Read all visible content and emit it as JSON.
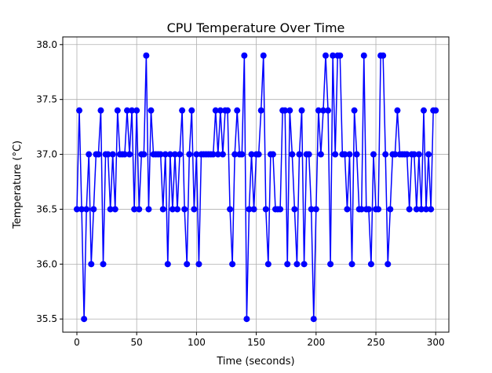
{
  "chart_data": {
    "type": "line",
    "title": "CPU Temperature Over Time",
    "xlabel": "Time (seconds)",
    "ylabel": "Temperature (°C)",
    "xlim": [
      -11.8,
      311
    ],
    "ylim": [
      35.38,
      38.07
    ],
    "xticks": [
      0,
      50,
      100,
      150,
      200,
      250,
      300
    ],
    "yticks": [
      35.5,
      36.0,
      36.5,
      37.0,
      37.5,
      38.0
    ],
    "ytick_labels": [
      "35.5",
      "36.0",
      "36.5",
      "37.0",
      "37.5",
      "38.0"
    ],
    "grid": true,
    "x_start": 0,
    "x_step": 2,
    "series": [
      {
        "name": "CPU Temperature",
        "color": "#0000ff",
        "marker": "circle",
        "values": [
          36.5,
          37.4,
          36.5,
          35.5,
          36.5,
          37.0,
          36.0,
          36.5,
          37.0,
          37.0,
          37.4,
          36.0,
          37.0,
          37.0,
          36.5,
          37.0,
          36.5,
          37.4,
          37.0,
          37.0,
          37.0,
          37.4,
          37.0,
          37.4,
          36.5,
          37.4,
          36.5,
          37.0,
          37.0,
          37.9,
          36.5,
          37.4,
          37.0,
          37.0,
          37.0,
          37.0,
          36.5,
          37.0,
          36.0,
          37.0,
          36.5,
          37.0,
          36.5,
          37.0,
          37.4,
          36.5,
          36.0,
          37.0,
          37.4,
          36.5,
          37.0,
          36.0,
          37.0,
          37.0,
          37.0,
          37.0,
          37.0,
          37.0,
          37.4,
          37.0,
          37.4,
          37.0,
          37.4,
          37.4,
          36.5,
          36.0,
          37.0,
          37.4,
          37.0,
          37.0,
          37.9,
          35.5,
          36.5,
          37.0,
          36.5,
          37.0,
          37.0,
          37.4,
          37.9,
          36.5,
          36.0,
          37.0,
          37.0,
          36.5,
          36.5,
          36.5,
          37.4,
          37.4,
          36.0,
          37.4,
          37.0,
          36.5,
          36.0,
          37.0,
          37.4,
          36.0,
          37.0,
          37.0,
          36.5,
          35.5,
          36.5,
          37.4,
          37.0,
          37.4,
          37.9,
          37.4,
          36.0,
          37.9,
          37.0,
          37.9,
          37.9,
          37.0,
          37.0,
          36.5,
          37.0,
          36.0,
          37.4,
          37.0,
          36.5,
          36.5,
          37.9,
          36.5,
          36.5,
          36.0,
          37.0,
          36.5,
          36.5,
          37.9,
          37.9,
          37.0,
          36.0,
          36.5,
          37.0,
          37.0,
          37.4,
          37.0,
          37.0,
          37.0,
          37.0,
          36.5,
          37.0,
          37.0,
          36.5,
          37.0,
          36.5,
          37.4,
          36.5,
          37.0,
          36.5,
          37.4,
          37.4
        ]
      }
    ]
  }
}
